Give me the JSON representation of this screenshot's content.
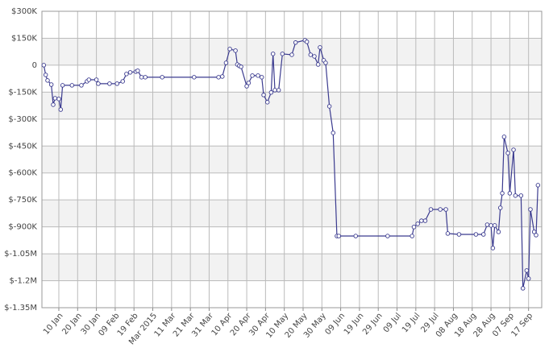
{
  "chart_data": {
    "type": "line",
    "color": "#3b3b8f",
    "grid": true,
    "markers": true,
    "x": [
      "2015-01-02",
      "2015-01-03",
      "2015-01-04",
      "2015-01-06",
      "2015-01-07",
      "2015-01-08",
      "2015-01-10",
      "2015-01-11",
      "2015-01-12",
      "2015-01-17",
      "2015-01-22",
      "2015-01-25",
      "2015-01-26",
      "2015-01-30",
      "2015-01-31",
      "2015-02-06",
      "2015-02-10",
      "2015-02-13",
      "2015-02-15",
      "2015-02-17",
      "2015-02-20",
      "2015-02-21",
      "2015-02-23",
      "2015-02-25",
      "2015-03-06",
      "2015-03-23",
      "2015-04-05",
      "2015-04-07",
      "2015-04-09",
      "2015-04-11",
      "2015-04-14",
      "2015-04-15",
      "2015-04-16",
      "2015-04-17",
      "2015-04-20",
      "2015-04-21",
      "2015-04-23",
      "2015-04-26",
      "2015-04-28",
      "2015-04-29",
      "2015-05-01",
      "2015-05-03",
      "2015-05-04",
      "2015-05-05",
      "2015-05-07",
      "2015-05-09",
      "2015-05-14",
      "2015-05-16",
      "2015-05-21",
      "2015-05-22",
      "2015-05-24",
      "2015-05-26",
      "2015-05-28",
      "2015-05-29",
      "2015-05-31",
      "2015-06-01",
      "2015-06-03",
      "2015-06-05",
      "2015-06-07",
      "2015-06-08",
      "2015-06-17",
      "2015-07-04",
      "2015-07-17",
      "2015-07-18",
      "2015-07-20",
      "2015-07-22",
      "2015-07-24",
      "2015-07-27",
      "2015-08-01",
      "2015-08-04",
      "2015-08-05",
      "2015-08-11",
      "2015-08-20",
      "2015-08-24",
      "2015-08-26",
      "2015-08-28",
      "2015-08-29",
      "2015-08-30",
      "2015-09-01",
      "2015-09-02",
      "2015-09-03",
      "2015-09-04",
      "2015-09-06",
      "2015-09-07",
      "2015-09-09",
      "2015-09-10",
      "2015-09-13",
      "2015-09-14",
      "2015-09-16",
      "2015-09-17",
      "2015-09-18",
      "2015-09-20",
      "2015-09-21",
      "2015-09-22"
    ],
    "values": [
      0,
      -54000,
      -85000,
      -108000,
      -220000,
      -184000,
      -188000,
      -247000,
      -112000,
      -112000,
      -112000,
      -90000,
      -81000,
      -81000,
      -103000,
      -103000,
      -103000,
      -90000,
      -49000,
      -40000,
      -36000,
      -31000,
      -67000,
      -67000,
      -67000,
      -67000,
      -67000,
      -63000,
      13000,
      90000,
      81000,
      4000,
      -4000,
      -9000,
      -117000,
      -99000,
      -58000,
      -58000,
      -67000,
      -166000,
      -206000,
      -152000,
      63000,
      -139000,
      -139000,
      63000,
      58000,
      126000,
      139000,
      130000,
      58000,
      49000,
      4000,
      99000,
      27000,
      13000,
      -229000,
      -377000,
      -951000,
      -951000,
      -951000,
      -951000,
      -951000,
      -901000,
      -883000,
      -866000,
      -866000,
      -803000,
      -803000,
      -803000,
      -937000,
      -942000,
      -942000,
      -942000,
      -888000,
      -892000,
      -1018000,
      -892000,
      -928000,
      -794000,
      -713000,
      -399000,
      -489000,
      -713000,
      -471000,
      -726000,
      -726000,
      -1242000,
      -1143000,
      -1188000,
      -803000,
      -928000,
      -946000,
      -668000
    ],
    "xlim": [
      "2015-01-01",
      "2015-09-24"
    ],
    "xticks": [
      {
        "value": "2015-01-10",
        "label": "10 Jan"
      },
      {
        "value": "2015-01-20",
        "label": "20 Jan"
      },
      {
        "value": "2015-01-30",
        "label": "30 Jan"
      },
      {
        "value": "2015-02-09",
        "label": "09 Feb"
      },
      {
        "value": "2015-02-19",
        "label": "19 Feb"
      },
      {
        "value": "2015-03-01",
        "label": "Mar 2015"
      },
      {
        "value": "2015-03-11",
        "label": "11 Mar"
      },
      {
        "value": "2015-03-21",
        "label": "21 Mar"
      },
      {
        "value": "2015-03-31",
        "label": "31 Mar"
      },
      {
        "value": "2015-04-10",
        "label": "10 Apr"
      },
      {
        "value": "2015-04-20",
        "label": "20 Apr"
      },
      {
        "value": "2015-04-30",
        "label": "30 Apr"
      },
      {
        "value": "2015-05-10",
        "label": "10 May"
      },
      {
        "value": "2015-05-20",
        "label": "20 May"
      },
      {
        "value": "2015-05-30",
        "label": "30 May"
      },
      {
        "value": "2015-06-09",
        "label": "09 Jun"
      },
      {
        "value": "2015-06-19",
        "label": "19 Jun"
      },
      {
        "value": "2015-06-29",
        "label": "29 Jun"
      },
      {
        "value": "2015-07-09",
        "label": "09 Jul"
      },
      {
        "value": "2015-07-19",
        "label": "19 Jul"
      },
      {
        "value": "2015-07-29",
        "label": "29 Jul"
      },
      {
        "value": "2015-08-08",
        "label": "08 Aug"
      },
      {
        "value": "2015-08-18",
        "label": "18 Aug"
      },
      {
        "value": "2015-08-28",
        "label": "28 Aug"
      },
      {
        "value": "2015-09-07",
        "label": "07 Sep"
      },
      {
        "value": "2015-09-17",
        "label": "17 Sep"
      }
    ],
    "ylim": [
      -1350000,
      300000
    ],
    "yticks": [
      {
        "value": 300000,
        "label": "$300K"
      },
      {
        "value": 150000,
        "label": "$150K"
      },
      0,
      {
        "value": -150000,
        "label": "$-150K"
      },
      {
        "value": -300000,
        "label": "$-300K"
      },
      {
        "value": -450000,
        "label": "$-450K"
      },
      {
        "value": -600000,
        "label": "$-600K"
      },
      {
        "value": -750000,
        "label": "$-750K"
      },
      {
        "value": -900000,
        "label": "$-900K"
      },
      {
        "value": -1050000,
        "label": "$-1.05M"
      },
      {
        "value": -1200000,
        "label": "$-1.2M"
      },
      {
        "value": -1350000,
        "label": "$-1.35M"
      }
    ]
  }
}
